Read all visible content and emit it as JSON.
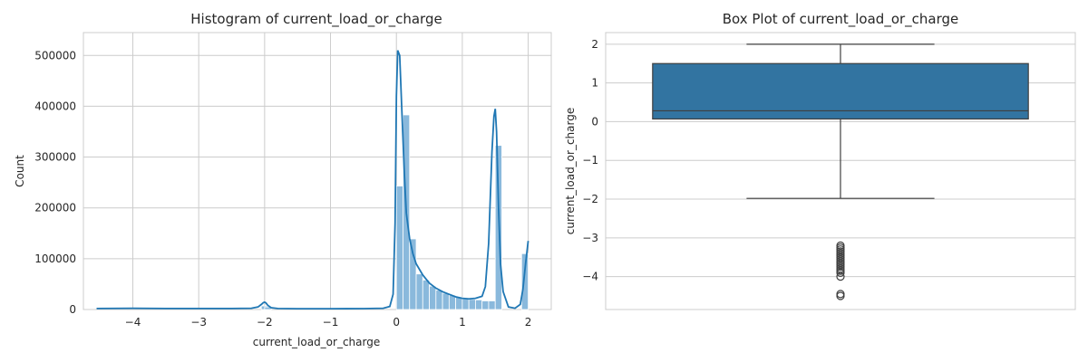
{
  "chart_data": [
    {
      "type": "bar",
      "subtype": "histogram_with_kde",
      "title": "Histogram of current_load_or_charge",
      "xlabel": "current_load_or_charge",
      "ylabel": "Count",
      "xlim": [
        -4.75,
        2.35
      ],
      "ylim": [
        0,
        545000
      ],
      "x_ticks": [
        -4,
        -3,
        -2,
        -1,
        0,
        1,
        2
      ],
      "x_tick_labels": [
        "−4",
        "−3",
        "−2",
        "−1",
        "0",
        "1",
        "2"
      ],
      "y_ticks": [
        0,
        100000,
        200000,
        300000,
        400000,
        500000
      ],
      "y_tick_labels": [
        "0",
        "100000",
        "200000",
        "300000",
        "400000",
        "500000"
      ],
      "grid": true,
      "colors": {
        "bar_fill": "#8ab9dc",
        "bar_edge": "#ffffff",
        "kde_line": "#1f77b4"
      },
      "bins": {
        "width": 0.1,
        "starts": [
          -2.05,
          -2.0,
          0.0,
          0.1,
          0.2,
          0.3,
          0.4,
          0.5,
          0.6,
          0.7,
          0.8,
          0.9,
          1.0,
          1.1,
          1.2,
          1.3,
          1.4,
          1.5,
          1.9
        ],
        "counts": [
          7000,
          5000,
          243000,
          383000,
          139000,
          70000,
          58000,
          46000,
          38000,
          32000,
          28000,
          24000,
          21000,
          20000,
          19000,
          17000,
          17000,
          323000,
          110000
        ]
      },
      "kde": {
        "x": [
          -4.55,
          -4.0,
          -3.5,
          -3.0,
          -2.5,
          -2.2,
          -2.1,
          -2.05,
          -2.02,
          -2.0,
          -1.98,
          -1.95,
          -1.9,
          -1.8,
          -1.5,
          -1.0,
          -0.5,
          -0.2,
          -0.1,
          -0.05,
          -0.02,
          0.0,
          0.02,
          0.05,
          0.08,
          0.12,
          0.15,
          0.2,
          0.25,
          0.3,
          0.4,
          0.5,
          0.6,
          0.7,
          0.8,
          0.9,
          1.0,
          1.1,
          1.2,
          1.3,
          1.35,
          1.4,
          1.45,
          1.48,
          1.5,
          1.52,
          1.55,
          1.58,
          1.62,
          1.7,
          1.8,
          1.88,
          1.92,
          1.96,
          2.0
        ],
        "y": [
          2000,
          2500,
          2000,
          2000,
          2000,
          2500,
          5000,
          10000,
          13500,
          14500,
          13000,
          8000,
          3500,
          2000,
          1500,
          1500,
          1800,
          2500,
          6000,
          30000,
          170000,
          420000,
          510000,
          500000,
          400000,
          270000,
          190000,
          140000,
          110000,
          90000,
          68000,
          52000,
          42000,
          35000,
          30000,
          25000,
          22000,
          21000,
          22000,
          26000,
          45000,
          130000,
          310000,
          380000,
          395000,
          350000,
          200000,
          90000,
          35000,
          5000,
          2500,
          10000,
          40000,
          90000,
          135000
        ]
      }
    },
    {
      "type": "box",
      "title": "Box Plot of current_load_or_charge",
      "ylabel": "current_load_or_charge",
      "ylim": [
        -4.85,
        2.3
      ],
      "y_ticks": [
        2,
        1,
        0,
        -1,
        -2,
        -3,
        -4
      ],
      "y_tick_labels": [
        "2",
        "1",
        "0",
        "−1",
        "−2",
        "−3",
        "−4"
      ],
      "grid": true,
      "colors": {
        "box_fill": "#3274a1",
        "line": "#3f3f3f"
      },
      "stats": {
        "q1": 0.07,
        "median": 0.28,
        "q3": 1.5,
        "whisker_low": -1.98,
        "whisker_high": 2.0
      },
      "outliers": [
        -3.2,
        -3.25,
        -3.3,
        -3.35,
        -3.4,
        -3.45,
        -3.5,
        -3.55,
        -3.6,
        -3.65,
        -3.7,
        -3.75,
        -3.8,
        -3.85,
        -3.9,
        -4.0,
        -4.45,
        -4.5
      ]
    }
  ]
}
